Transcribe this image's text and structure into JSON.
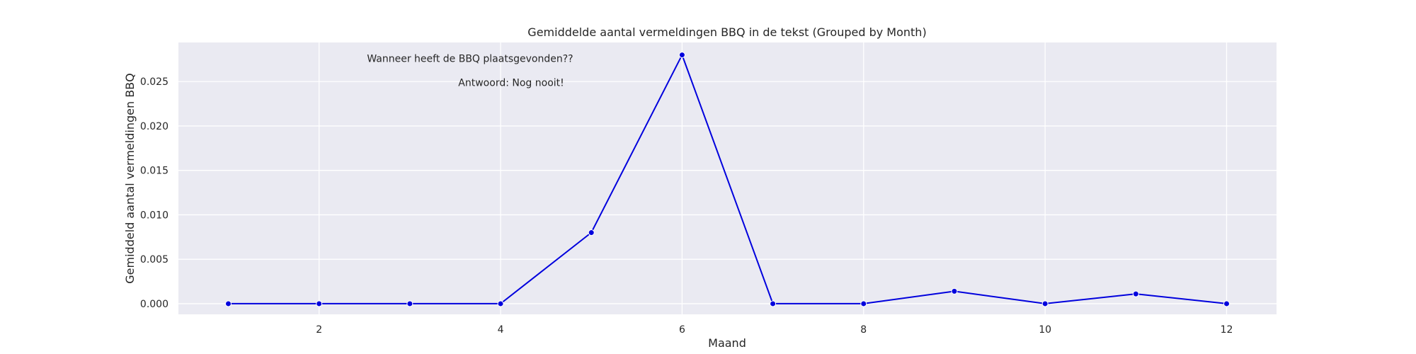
{
  "chart_data": {
    "type": "line",
    "title": "Gemiddelde aantal vermeldingen BBQ in de tekst (Grouped by Month)",
    "xlabel": "Maand",
    "ylabel": "Gemiddeld aantal vermeldingen BBQ",
    "x": [
      1,
      2,
      3,
      4,
      5,
      6,
      7,
      8,
      9,
      10,
      11,
      12
    ],
    "series": [
      {
        "values": [
          0.0,
          0.0,
          0.0,
          0.0,
          0.008,
          0.028,
          0.0,
          0.0,
          0.0014,
          0.0,
          0.0011,
          0.0
        ]
      }
    ],
    "xlim": [
      0.45,
      12.55
    ],
    "ylim": [
      -0.0012,
      0.0294
    ],
    "xticks": [
      2,
      4,
      6,
      8,
      10,
      12
    ],
    "yticks": [
      0.0,
      0.005,
      0.01,
      0.015,
      0.02,
      0.025
    ],
    "ytick_labels": [
      "0.000",
      "0.005",
      "0.010",
      "0.015",
      "0.020",
      "0.025"
    ],
    "grid": true,
    "line_color": "#0000dd",
    "background_color": "#eaeaf2",
    "annotations": [
      {
        "text": "Wanneer heeft de BBQ plaatsgevonden??",
        "x": 4.8,
        "y": 0.0276
      },
      {
        "text": "Antwoord: Nog nooit!",
        "x": 4.7,
        "y": 0.0249
      }
    ]
  }
}
